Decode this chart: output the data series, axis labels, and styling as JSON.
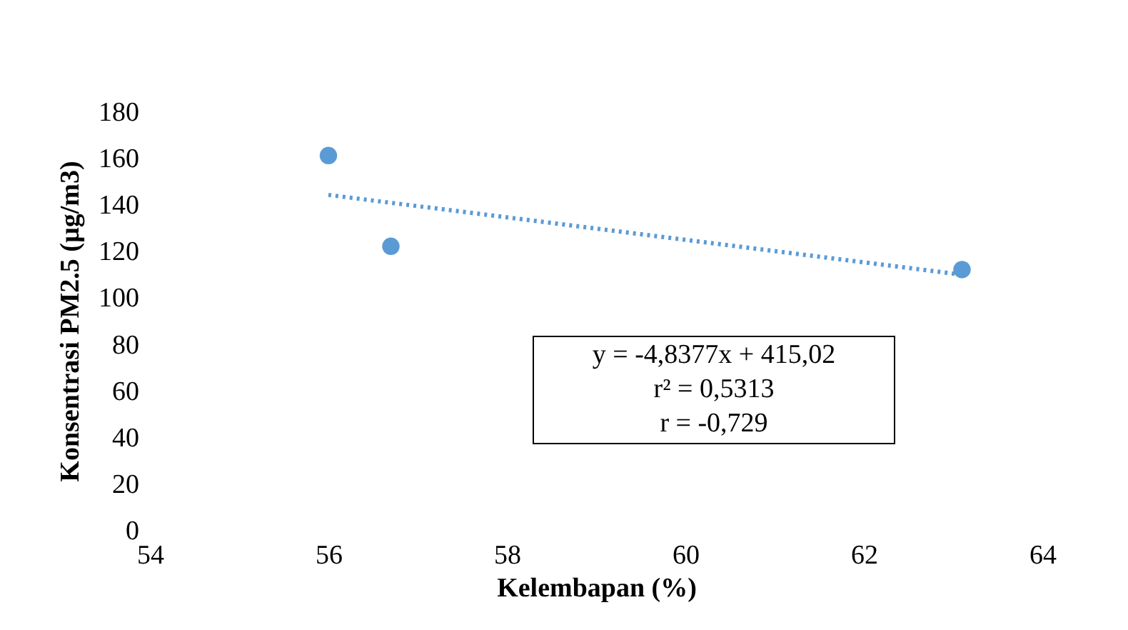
{
  "chart_data": {
    "type": "scatter",
    "xlabel": "Kelembapan (%)",
    "ylabel": "Konsentrasi PM2.5  (µg/m3)",
    "xlim": [
      54,
      64
    ],
    "xticks": [
      54,
      56,
      58,
      60,
      62,
      64
    ],
    "ylim": [
      0,
      180
    ],
    "yticks": [
      0,
      20,
      40,
      60,
      80,
      100,
      120,
      140,
      160,
      180
    ],
    "grid": false,
    "series": [
      {
        "color": "#5b9bd5",
        "marker": "circle",
        "x": [
          56,
          56.7,
          63.1
        ],
        "values": [
          161,
          122,
          112
        ]
      },
      {
        "type": "line",
        "color": "#5b9bd5",
        "line_style": "dotted",
        "marker": "none",
        "x": [
          56,
          63.1
        ],
        "values": [
          144.1,
          109.8
        ]
      }
    ],
    "annotations": [
      "y = -4,8377x + 415,02",
      "r² = 0,5313",
      "r = -0,729"
    ]
  }
}
